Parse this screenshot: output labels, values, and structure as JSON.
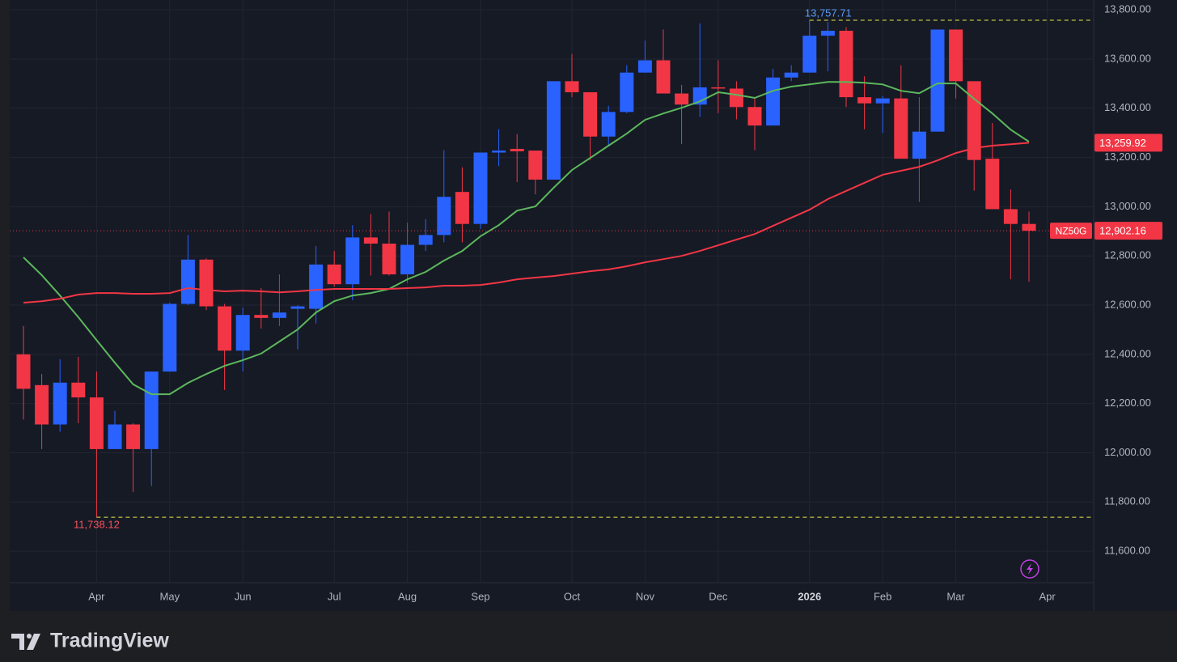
{
  "chart_data": {
    "type": "candlestick",
    "categories": [
      null,
      null,
      null,
      null,
      "Apr",
      null,
      null,
      null,
      "May",
      null,
      null,
      null,
      "Jun",
      null,
      null,
      null,
      null,
      "Jul",
      null,
      null,
      null,
      "Aug",
      null,
      null,
      null,
      "Sep",
      null,
      null,
      null,
      null,
      "Oct",
      null,
      null,
      null,
      "Nov",
      null,
      null,
      null,
      "Dec",
      null,
      null,
      null,
      null,
      "2026",
      null,
      null,
      null,
      "Feb",
      null,
      null,
      null,
      "Mar",
      null,
      null,
      null,
      null,
      "Apr"
    ],
    "open": [
      12400,
      12275,
      12115,
      12285,
      12225,
      12015,
      12115,
      12015,
      12330,
      12605,
      12785,
      12595,
      12415,
      12560,
      12548,
      12585,
      12585,
      12765,
      12685,
      12875,
      12850,
      12725,
      12845,
      12885,
      13060,
      12930,
      13220,
      13235,
      13228,
      13110,
      13510,
      13465,
      13285,
      13385,
      13545,
      13595,
      13460,
      13415,
      13485,
      13480,
      13405,
      13330,
      13525,
      13545,
      13695,
      13715,
      13445,
      13420,
      13440,
      13195,
      13305,
      13720,
      13510,
      13195,
      12990,
      12930,
      null
    ],
    "high": [
      12515,
      12320,
      12380,
      12390,
      12330,
      12170,
      12120,
      12330,
      12610,
      12885,
      12790,
      12605,
      12590,
      12670,
      12725,
      12600,
      12840,
      12820,
      12925,
      12970,
      12980,
      12935,
      12950,
      13230,
      13160,
      13220,
      13315,
      13295,
      13228,
      13510,
      13620,
      13465,
      13410,
      13575,
      13675,
      13720,
      13495,
      13745,
      13595,
      13510,
      13445,
      13560,
      13575,
      13757.71,
      13750,
      13730,
      13530,
      13450,
      13575,
      13445,
      13720,
      13720,
      13510,
      13340,
      13070,
      12980,
      null
    ],
    "low": [
      12135,
      12015,
      12085,
      12120,
      11738.12,
      12015,
      11840,
      11865,
      12330,
      12600,
      12580,
      12255,
      12330,
      12505,
      12515,
      12420,
      12525,
      12675,
      12620,
      12720,
      12720,
      12690,
      12820,
      12855,
      12855,
      12910,
      13165,
      13100,
      13050,
      13110,
      13445,
      13190,
      13250,
      13380,
      13545,
      13460,
      13255,
      13365,
      13380,
      13355,
      13230,
      13330,
      13510,
      13545,
      13550,
      13405,
      13315,
      13300,
      13195,
      13020,
      13305,
      13440,
      13065,
      12990,
      12705,
      12695,
      null
    ],
    "close": [
      12260,
      12115,
      12285,
      12225,
      12015,
      12115,
      12015,
      12330,
      12605,
      12785,
      12595,
      12415,
      12560,
      12548,
      12570,
      12595,
      12765,
      12685,
      12875,
      12850,
      12725,
      12845,
      12885,
      13040,
      12930,
      13220,
      13228,
      13225,
      13110,
      13510,
      13465,
      13285,
      13385,
      13545,
      13595,
      13460,
      13415,
      13485,
      13480,
      13405,
      13330,
      13525,
      13545,
      13695,
      13715,
      13445,
      13420,
      13440,
      13195,
      13305,
      13720,
      13510,
      13190,
      12990,
      12930,
      12902.16,
      null
    ],
    "up_color": "#2962ff",
    "down_color": "#f23645",
    "moving_averages": [
      {
        "color": "#5cb85c",
        "values": [
          12794,
          12722,
          12639,
          12551,
          12458,
          12366,
          12278,
          12238,
          12238,
          12284,
          12320,
          12353,
          12376,
          12403,
          12452,
          12501,
          12570,
          12616,
          12639,
          12649,
          12666,
          12705,
          12735,
          12781,
          12820,
          12880,
          12925,
          12984,
          13001,
          13077,
          13149,
          13198,
          13248,
          13297,
          13353,
          13379,
          13402,
          13428,
          13465,
          13455,
          13442,
          13471,
          13488,
          13497,
          13507,
          13507,
          13504,
          13497,
          13471,
          13461,
          13501,
          13501,
          13438,
          13379,
          13313,
          13264,
          null
        ]
      },
      {
        "color": "#f23645",
        "values": [
          12610,
          12616,
          12626,
          12643,
          12649,
          12649,
          12646,
          12646,
          12649,
          12669,
          12662,
          12656,
          12659,
          12656,
          12652,
          12656,
          12662,
          12666,
          12666,
          12666,
          12666,
          12669,
          12672,
          12679,
          12679,
          12682,
          12692,
          12705,
          12712,
          12718,
          12728,
          12738,
          12745,
          12758,
          12774,
          12787,
          12800,
          12820,
          12843,
          12866,
          12889,
          12922,
          12955,
          12988,
          13031,
          13064,
          13097,
          13130,
          13146,
          13162,
          13188,
          13218,
          13238,
          13248,
          13254,
          13259.92,
          null
        ]
      }
    ],
    "ylim": [
      11472,
      13840
    ],
    "yticks": [
      {
        "value": 11600,
        "label": "11,600.00"
      },
      {
        "value": 11800,
        "label": "11,800.00"
      },
      {
        "value": 12000,
        "label": "12,000.00"
      },
      {
        "value": 12200,
        "label": "12,200.00"
      },
      {
        "value": 12400,
        "label": "12,400.00"
      },
      {
        "value": 12600,
        "label": "12,600.00"
      },
      {
        "value": 12800,
        "label": "12,800.00"
      },
      {
        "value": 13000,
        "label": "13,000.00"
      },
      {
        "value": 13200,
        "label": "13,200.00"
      },
      {
        "value": 13400,
        "label": "13,400.00"
      },
      {
        "value": 13600,
        "label": "13,600.00"
      },
      {
        "value": 13800,
        "label": "13,800.00"
      }
    ],
    "grid": true,
    "high_marker": {
      "value": 13757.71,
      "label": "13,757.71"
    },
    "low_marker": {
      "value": 11738.12,
      "label": "11,738.12"
    },
    "last_price": {
      "symbol": "NZ50G",
      "value": 12902.16,
      "label": "12,902.16"
    },
    "ma_badge": {
      "value": 13259.92,
      "label": "13,259.92"
    }
  },
  "footer": {
    "brand": "TradingView"
  }
}
